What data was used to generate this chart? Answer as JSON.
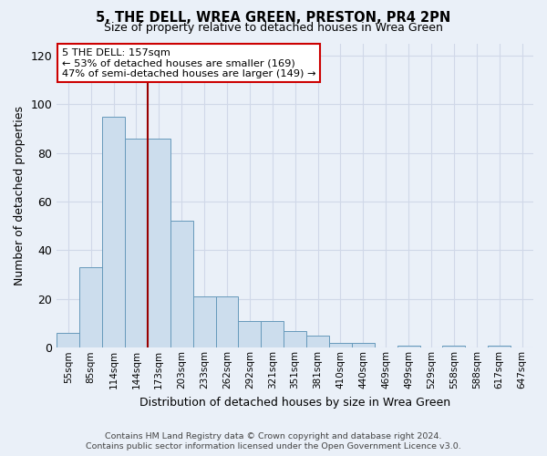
{
  "title1": "5, THE DELL, WREA GREEN, PRESTON, PR4 2PN",
  "title2": "Size of property relative to detached houses in Wrea Green",
  "xlabel": "Distribution of detached houses by size in Wrea Green",
  "ylabel": "Number of detached properties",
  "bar_labels": [
    "55sqm",
    "85sqm",
    "114sqm",
    "144sqm",
    "173sqm",
    "203sqm",
    "233sqm",
    "262sqm",
    "292sqm",
    "321sqm",
    "351sqm",
    "381sqm",
    "410sqm",
    "440sqm",
    "469sqm",
    "499sqm",
    "529sqm",
    "558sqm",
    "588sqm",
    "617sqm",
    "647sqm"
  ],
  "bar_values": [
    6,
    33,
    95,
    86,
    86,
    52,
    21,
    21,
    11,
    11,
    7,
    5,
    2,
    2,
    0,
    1,
    0,
    1,
    0,
    1,
    0
  ],
  "bar_color": "#ccdded",
  "bar_edge_color": "#6699bb",
  "vline_x": 3.5,
  "vline_color": "#990000",
  "annotation_text": "5 THE DELL: 157sqm\n← 53% of detached houses are smaller (169)\n47% of semi-detached houses are larger (149) →",
  "annotation_box_color": "#ffffff",
  "annotation_box_edge": "#cc0000",
  "ylim": [
    0,
    125
  ],
  "yticks": [
    0,
    20,
    40,
    60,
    80,
    100,
    120
  ],
  "grid_color": "#d0d8e8",
  "background_color": "#eaf0f8",
  "footer1": "Contains HM Land Registry data © Crown copyright and database right 2024.",
  "footer2": "Contains public sector information licensed under the Open Government Licence v3.0."
}
